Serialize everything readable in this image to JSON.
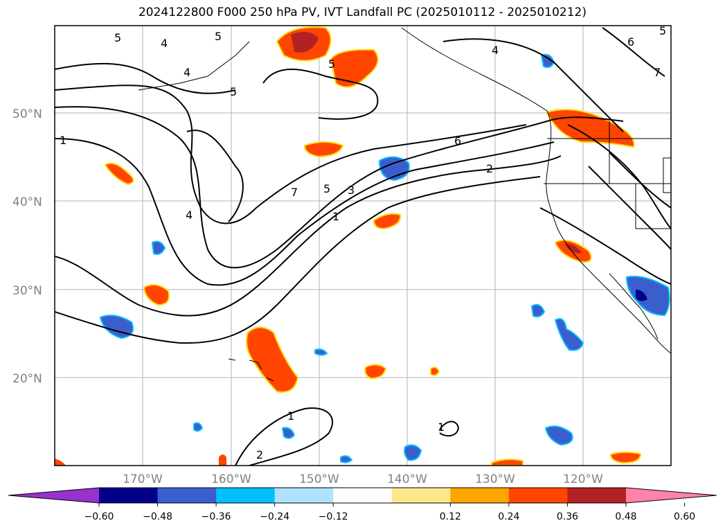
{
  "title": "2024122800 F000 250 hPa PV, IVT Landfall PC (2025010112 - 2025010212)",
  "latitude_labels": [
    "50°N",
    "40°N",
    "30°N",
    "20°N"
  ],
  "longitude_labels": [
    "170°W",
    "160°W",
    "150°W",
    "140°W",
    "130°W",
    "120°W"
  ],
  "contour_labels": [
    "5",
    "4",
    "5",
    "4",
    "5",
    "1",
    "5",
    "4",
    "4",
    "6",
    "2",
    "7",
    "5",
    "3",
    "1",
    "6",
    "7",
    "1",
    "1",
    "2",
    "5"
  ],
  "colorbar": {
    "tick_labels": [
      "−0.60",
      "−0.48",
      "−0.36",
      "−0.24",
      "−0.12",
      "0.12",
      "0.24",
      "0.36",
      "0.48",
      "0.60"
    ],
    "colors": [
      "#9932cc",
      "#00008b",
      "#3a5fcd",
      "#00bfff",
      "#b0e2ff",
      "#ffffff",
      "#fde98b",
      "#ffa500",
      "#ff4500",
      "#b22222",
      "#ff82ab"
    ]
  }
}
